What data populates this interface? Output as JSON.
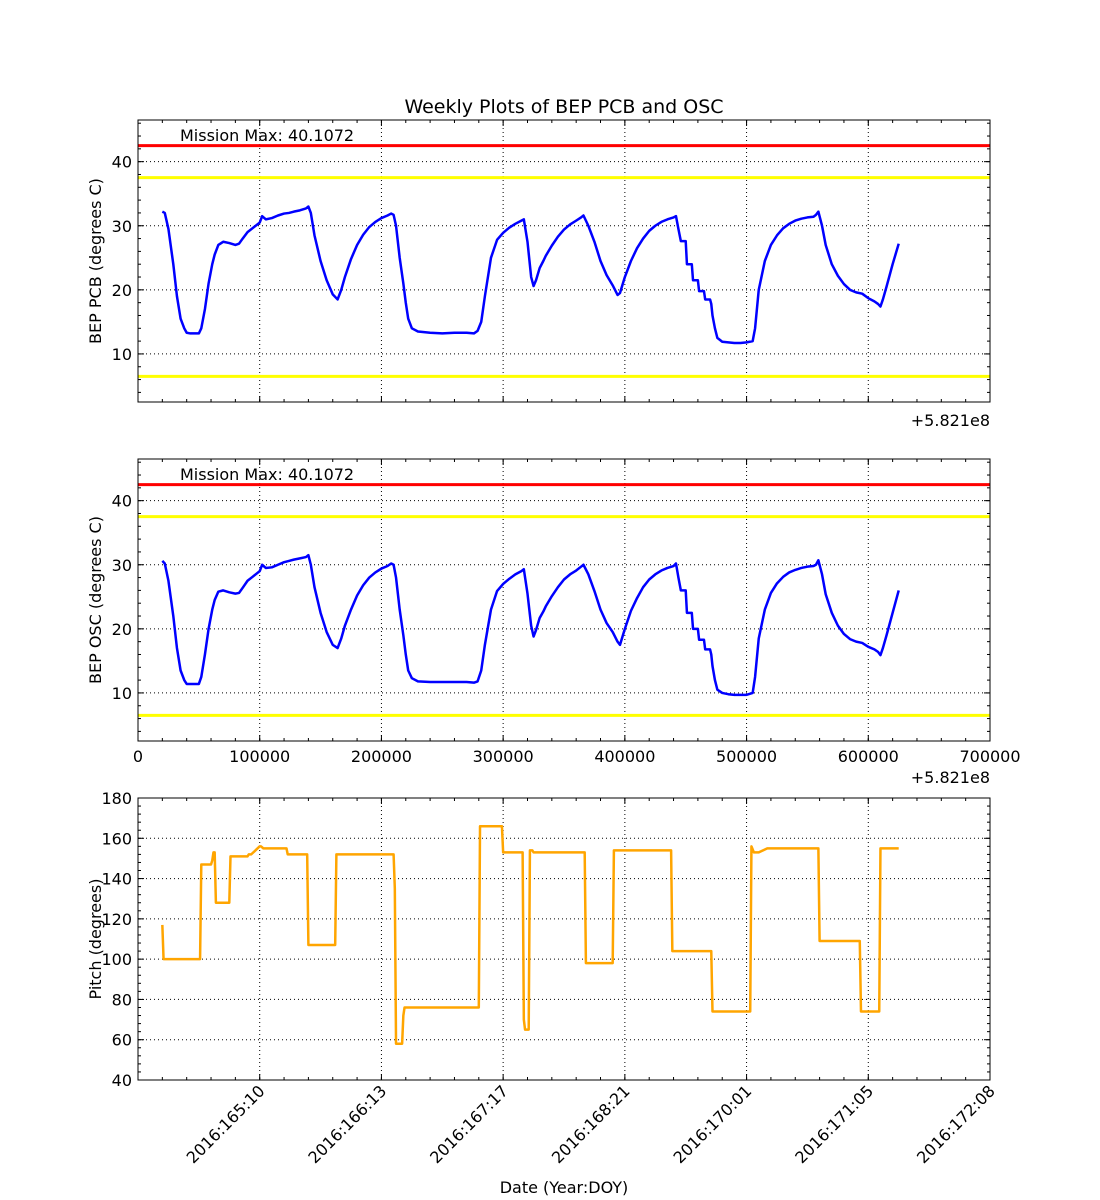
{
  "chart_data": [
    {
      "type": "line",
      "title": "Weekly Plots of BEP PCB and OSC",
      "ylabel": "BEP PCB (degrees C)",
      "xlabel": "",
      "xlim": [
        0,
        700000
      ],
      "ylim": [
        2.5,
        46.5
      ],
      "x_offset_text": "+5.821e8",
      "x_tick_labels_visible": false,
      "x_ticks": [
        0,
        100000,
        200000,
        300000,
        400000,
        500000,
        600000,
        700000
      ],
      "y_ticks": [
        10,
        20,
        30,
        40
      ],
      "y_tick_labels": [
        "10",
        "20",
        "30",
        "40"
      ],
      "grid": true,
      "annotation": "Mission Max: 40.1072",
      "limit_lines": [
        {
          "value": 42.5,
          "color": "#ff0000"
        },
        {
          "value": 37.5,
          "color": "#ffff00"
        },
        {
          "value": 6.5,
          "color": "#ffff00"
        }
      ],
      "series": [
        {
          "color": "#0000ff",
          "x": [
            20000,
            22000,
            25000,
            29000,
            32000,
            35000,
            38000,
            40000,
            43000,
            50000,
            52000,
            55000,
            58000,
            61000,
            63000,
            66000,
            70000,
            75000,
            80000,
            83000,
            86000,
            90000,
            94000,
            98000,
            100000,
            102000,
            105000,
            110000,
            115000,
            120000,
            124000,
            128000,
            133000,
            138000,
            140000,
            142000,
            145000,
            150000,
            155000,
            160000,
            164000,
            167000,
            170000,
            175000,
            180000,
            185000,
            190000,
            195000,
            200000,
            205000,
            208000,
            210000,
            212000,
            215000,
            218000,
            220000,
            222000,
            225000,
            230000,
            240000,
            250000,
            260000,
            270000,
            276000,
            279000,
            282000,
            285000,
            290000,
            295000,
            300000,
            305000,
            310000,
            315000,
            317000,
            320000,
            323000,
            325000,
            327000,
            330000,
            333000,
            335000,
            340000,
            345000,
            350000,
            355000,
            360000,
            364000,
            366000,
            370000,
            375000,
            380000,
            385000,
            390000,
            394000,
            396000,
            400000,
            405000,
            410000,
            415000,
            420000,
            425000,
            430000,
            435000,
            440000,
            442000,
            444000,
            446000,
            450000,
            451000,
            455000,
            456000,
            460000,
            461000,
            465000,
            466000,
            470000,
            471000,
            472000,
            474000,
            476000,
            480000,
            485000,
            490000,
            495000,
            500000,
            505000,
            507000,
            510000,
            515000,
            520000,
            525000,
            530000,
            535000,
            540000,
            545000,
            550000,
            555000,
            557000,
            559000,
            562000,
            565000,
            570000,
            575000,
            580000,
            585000,
            590000,
            595000,
            600000,
            605000,
            608000,
            610000,
            612000,
            615000,
            620000,
            625000
          ],
          "y": [
            32.2,
            32,
            29.5,
            24,
            19,
            15.5,
            14,
            13.3,
            13.2,
            13.2,
            14,
            17,
            21,
            24,
            25.5,
            27,
            27.5,
            27.3,
            27,
            27.2,
            28,
            29,
            29.6,
            30.2,
            30.5,
            31.5,
            31,
            31.2,
            31.6,
            31.9,
            32,
            32.2,
            32.4,
            32.7,
            33,
            32,
            28.5,
            24.5,
            21.5,
            19.3,
            18.5,
            20,
            22,
            24.8,
            27,
            28.6,
            29.8,
            30.6,
            31.2,
            31.6,
            31.9,
            31.7,
            30,
            25,
            21,
            18,
            15.5,
            14,
            13.5,
            13.3,
            13.2,
            13.3,
            13.3,
            13.2,
            13.6,
            15,
            19,
            25,
            27.8,
            28.9,
            29.7,
            30.3,
            30.8,
            31,
            27.5,
            22,
            20.6,
            21.5,
            23.4,
            24.5,
            25.3,
            26.9,
            28.3,
            29.4,
            30.2,
            30.8,
            31.3,
            31.6,
            30,
            27.5,
            24.5,
            22.3,
            20.7,
            19.2,
            19.5,
            22,
            24.5,
            26.5,
            28,
            29.2,
            30,
            30.6,
            31,
            31.3,
            31.5,
            29.5,
            27.6,
            27.6,
            24,
            24,
            21.5,
            21.5,
            19.8,
            19.8,
            18.5,
            18.5,
            17.8,
            16,
            14,
            12.5,
            11.9,
            11.8,
            11.7,
            11.7,
            11.8,
            12,
            14,
            20,
            24.5,
            27,
            28.5,
            29.6,
            30.3,
            30.8,
            31.1,
            31.3,
            31.4,
            31.7,
            32.2,
            30,
            27,
            24,
            22.2,
            20.9,
            20,
            19.6,
            19.4,
            18.7,
            18.2,
            17.8,
            17.4,
            18.5,
            20.5,
            24,
            27.2
          ]
        }
      ]
    },
    {
      "type": "line",
      "title": "",
      "ylabel": "BEP OSC (degrees C)",
      "xlabel": "",
      "xlim": [
        0,
        700000
      ],
      "ylim": [
        2.5,
        46.5
      ],
      "x_offset_text": "+5.821e8",
      "x_ticks": [
        0,
        100000,
        200000,
        300000,
        400000,
        500000,
        600000,
        700000
      ],
      "x_tick_labels": [
        "0",
        "100000",
        "200000",
        "300000",
        "400000",
        "500000",
        "600000",
        "700000"
      ],
      "y_ticks": [
        10,
        20,
        30,
        40
      ],
      "y_tick_labels": [
        "10",
        "20",
        "30",
        "40"
      ],
      "grid": true,
      "annotation": "Mission Max: 40.1072",
      "limit_lines": [
        {
          "value": 42.5,
          "color": "#ff0000"
        },
        {
          "value": 37.5,
          "color": "#ffff00"
        },
        {
          "value": 6.5,
          "color": "#ffff00"
        }
      ],
      "series": [
        {
          "color": "#0000ff",
          "x": [
            20000,
            22000,
            25000,
            29000,
            32000,
            35000,
            38000,
            40000,
            43000,
            50000,
            52000,
            55000,
            58000,
            61000,
            63000,
            66000,
            70000,
            75000,
            80000,
            83000,
            86000,
            90000,
            94000,
            98000,
            100000,
            102000,
            105000,
            110000,
            115000,
            120000,
            124000,
            128000,
            133000,
            138000,
            140000,
            142000,
            145000,
            150000,
            155000,
            160000,
            164000,
            167000,
            170000,
            175000,
            180000,
            185000,
            190000,
            195000,
            200000,
            205000,
            208000,
            210000,
            212000,
            215000,
            218000,
            220000,
            222000,
            225000,
            230000,
            240000,
            250000,
            260000,
            270000,
            276000,
            279000,
            282000,
            285000,
            290000,
            295000,
            300000,
            305000,
            310000,
            315000,
            317000,
            320000,
            323000,
            325000,
            327000,
            330000,
            333000,
            335000,
            340000,
            345000,
            350000,
            355000,
            360000,
            364000,
            366000,
            370000,
            375000,
            380000,
            385000,
            390000,
            394000,
            396000,
            400000,
            405000,
            410000,
            415000,
            420000,
            425000,
            430000,
            435000,
            440000,
            442000,
            444000,
            446000,
            450000,
            451000,
            455000,
            456000,
            460000,
            461000,
            465000,
            466000,
            470000,
            471000,
            472000,
            474000,
            476000,
            480000,
            485000,
            490000,
            495000,
            500000,
            505000,
            507000,
            510000,
            515000,
            520000,
            525000,
            530000,
            535000,
            540000,
            545000,
            550000,
            555000,
            557000,
            559000,
            562000,
            565000,
            570000,
            575000,
            580000,
            585000,
            590000,
            595000,
            600000,
            605000,
            608000,
            610000,
            612000,
            615000,
            620000,
            625000
          ],
          "y": [
            30.6,
            30.2,
            27.5,
            22,
            17,
            13.5,
            12,
            11.4,
            11.4,
            11.4,
            12.5,
            16,
            20,
            23,
            24.5,
            25.8,
            26,
            25.7,
            25.5,
            25.6,
            26.4,
            27.5,
            28.1,
            28.7,
            29,
            30,
            29.5,
            29.6,
            30,
            30.4,
            30.6,
            30.8,
            31,
            31.2,
            31.5,
            30,
            26.5,
            22.5,
            19.5,
            17.5,
            17,
            18.5,
            20.5,
            23,
            25.2,
            26.8,
            28,
            28.8,
            29.4,
            29.8,
            30.2,
            30,
            28,
            23,
            19,
            16,
            13.5,
            12.3,
            11.8,
            11.7,
            11.7,
            11.7,
            11.7,
            11.6,
            11.8,
            13.5,
            17.5,
            23,
            25.9,
            27,
            27.8,
            28.5,
            29,
            29.3,
            25.5,
            20.5,
            18.8,
            19.8,
            21.7,
            22.7,
            23.5,
            25.1,
            26.5,
            27.7,
            28.5,
            29.1,
            29.7,
            30,
            28.5,
            25.9,
            23,
            20.9,
            19.5,
            18,
            17.5,
            20,
            22.8,
            24.8,
            26.5,
            27.7,
            28.5,
            29.1,
            29.5,
            29.8,
            30.2,
            28,
            26,
            26,
            22.5,
            22.5,
            20,
            20,
            18.3,
            18.3,
            16.8,
            16.8,
            16,
            14.2,
            12,
            10.5,
            10,
            9.8,
            9.7,
            9.7,
            9.7,
            10,
            12.5,
            18.5,
            23,
            25.6,
            27.1,
            28.1,
            28.8,
            29.2,
            29.5,
            29.7,
            29.8,
            30,
            30.7,
            28.5,
            25.4,
            22.5,
            20.5,
            19.2,
            18.4,
            18,
            17.8,
            17.2,
            16.8,
            16.4,
            15.9,
            17,
            19,
            22.5,
            26
          ]
        }
      ]
    },
    {
      "type": "line",
      "title": "",
      "ylabel": "Pitch (degrees)",
      "xlabel": "Date (Year:DOY)",
      "xlim": [
        0,
        700000
      ],
      "ylim": [
        40,
        180
      ],
      "x_ticks": [
        100000,
        200000,
        300000,
        400000,
        500000,
        600000,
        700000
      ],
      "x_tick_labels": [
        "2016:165:10",
        "2016:166:13",
        "2016:167:17",
        "2016:168:21",
        "2016:170:01",
        "2016:171:05",
        "2016:172:08"
      ],
      "y_ticks": [
        40,
        60,
        80,
        100,
        120,
        140,
        160,
        180
      ],
      "y_tick_labels": [
        "40",
        "60",
        "80",
        "100",
        "120",
        "140",
        "160",
        "180"
      ],
      "grid": true,
      "series": [
        {
          "color": "#ffa500",
          "x": [
            20000,
            21000,
            51000,
            52000,
            60000,
            61000,
            62000,
            63000,
            64000,
            75000,
            76000,
            90000,
            91000,
            93000,
            100000,
            101000,
            103000,
            122000,
            123000,
            139000,
            140000,
            162000,
            163000,
            210000,
            211000,
            212000,
            217000,
            218000,
            219000,
            260000,
            280000,
            281000,
            299000,
            300000,
            316000,
            317000,
            318000,
            321000,
            322000,
            324000,
            325000,
            326000,
            367000,
            368000,
            390000,
            391000,
            438000,
            439000,
            471000,
            472000,
            503000,
            504000,
            506000,
            510000,
            517000,
            559000,
            560000,
            593000,
            594000,
            609000,
            610000,
            625000
          ],
          "y": [
            117,
            100,
            100,
            147,
            147,
            149,
            153,
            153,
            128,
            128,
            151,
            151,
            152,
            152,
            156,
            156,
            155,
            155,
            152,
            152,
            107,
            107,
            152,
            152,
            135,
            58,
            58,
            72,
            76,
            76,
            76,
            166,
            166,
            153,
            153,
            70,
            65,
            65,
            154,
            154,
            153,
            153,
            153,
            98,
            98,
            154,
            154,
            104,
            104,
            74,
            74,
            156,
            153,
            153,
            155,
            155,
            109,
            109,
            74,
            74,
            155,
            155
          ]
        }
      ]
    }
  ]
}
